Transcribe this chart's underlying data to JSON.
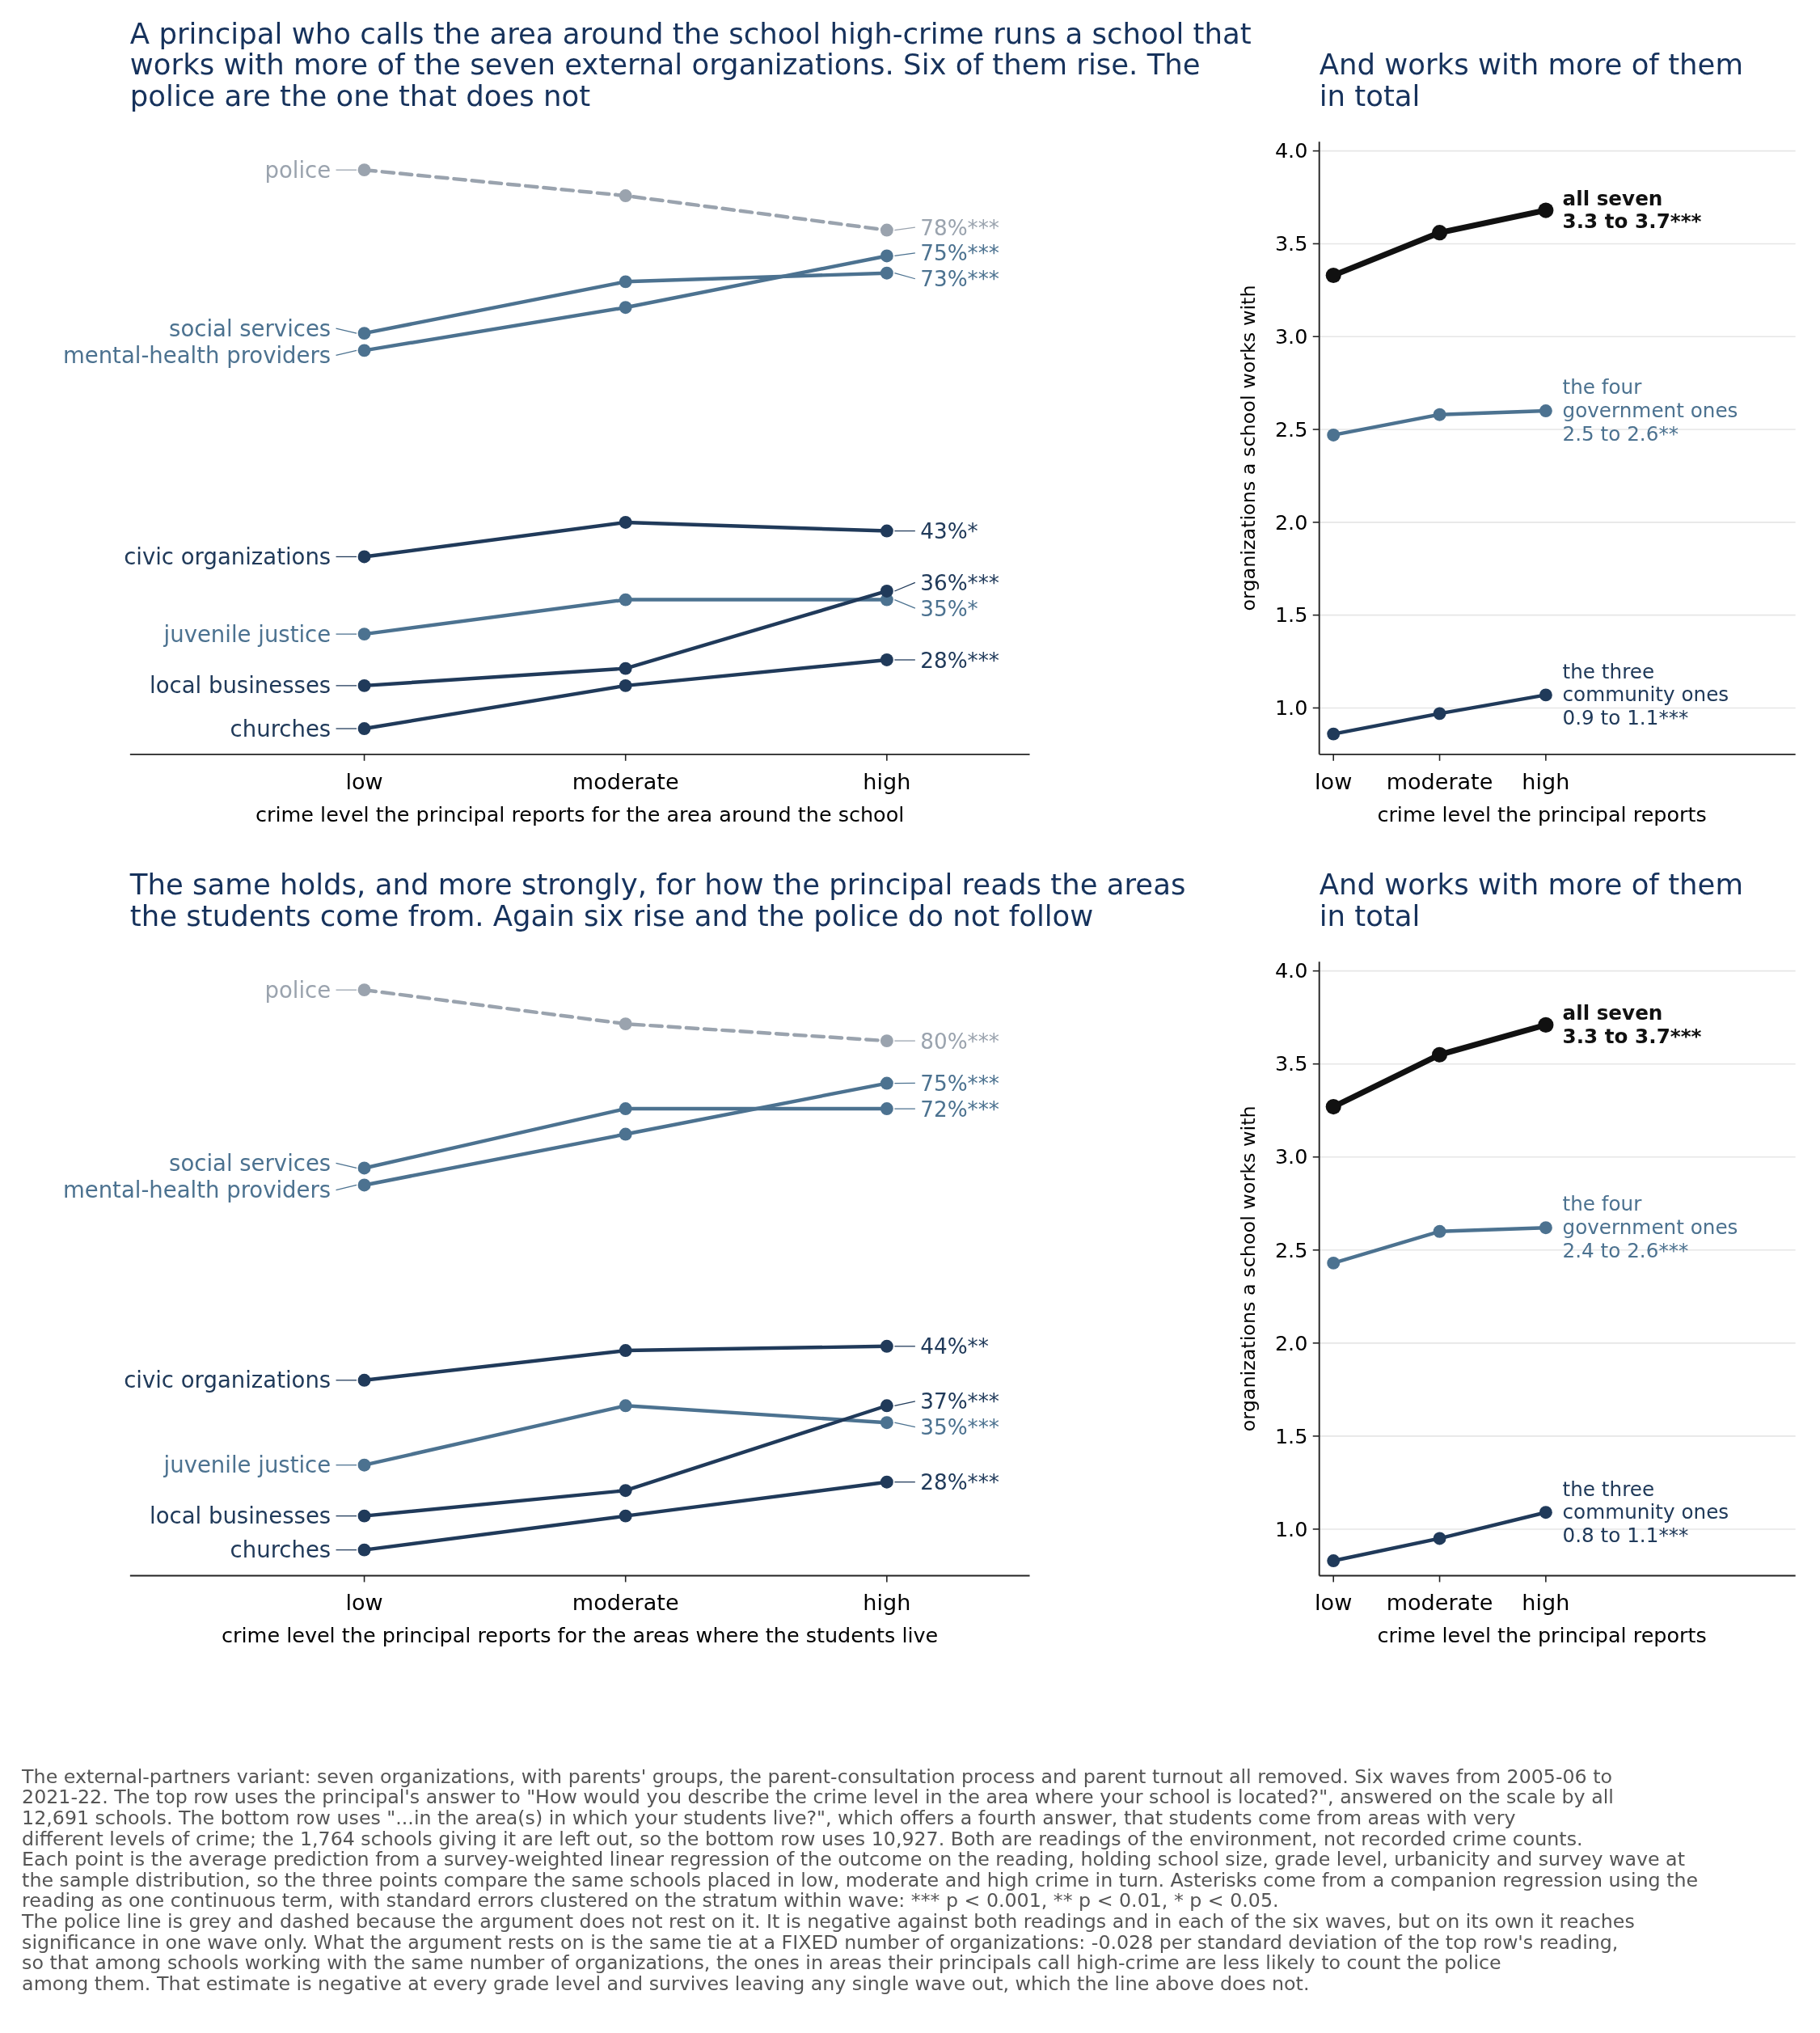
{
  "chart_data": [
    {
      "type": "line",
      "title": "A principal who calls the area around the school high-crime runs a school that\nworks with more of the seven external organizations. Six of them rise. The\npolice are the one that does not",
      "xlabel": "crime level the principal reports for the area around the school",
      "categories": [
        "low",
        "moderate",
        "high"
      ],
      "tick_labels": "x",
      "legend": "left",
      "marker": "circle",
      "series": [
        {
          "name": "police",
          "color": "#9aa3ae",
          "line_style": "dashed",
          "values": [
            85,
            82,
            78
          ],
          "value_labels": [
            null,
            null,
            "78%***"
          ]
        },
        {
          "name": "social services",
          "color": "#4c7290",
          "values": [
            66,
            72,
            73
          ],
          "value_labels": [
            null,
            null,
            "73%***"
          ]
        },
        {
          "name": "mental-health providers",
          "color": "#4c7290",
          "values": [
            64,
            69,
            75
          ],
          "value_labels": [
            null,
            null,
            "75%***"
          ]
        },
        {
          "name": "civic organizations",
          "color": "#203a5a",
          "values": [
            40,
            44,
            43
          ],
          "value_labels": [
            null,
            null,
            "43%*"
          ]
        },
        {
          "name": "juvenile justice",
          "color": "#4c7290",
          "values": [
            31,
            35,
            35
          ],
          "value_labels": [
            null,
            null,
            "35%*"
          ]
        },
        {
          "name": "local businesses",
          "color": "#203a5a",
          "values": [
            25,
            27,
            36
          ],
          "value_labels": [
            null,
            null,
            "36%***"
          ]
        },
        {
          "name": "churches",
          "color": "#203a5a",
          "values": [
            20,
            25,
            28
          ],
          "value_labels": [
            null,
            null,
            "28%***"
          ]
        }
      ]
    },
    {
      "type": "line",
      "title": "And works with more of them\nin total",
      "xlabel": "crime level the principal reports",
      "ylabel": "organizations a school works with",
      "categories": [
        "low",
        "moderate",
        "high"
      ],
      "ylim": [
        0.75,
        4.05
      ],
      "yticks": [
        {
          "value": 1,
          "label": "1.0"
        },
        {
          "value": 1.5,
          "label": "1.5"
        },
        {
          "value": 2,
          "label": "2.0"
        },
        {
          "value": 2.5,
          "label": "2.5"
        },
        {
          "value": 3,
          "label": "3.0"
        },
        {
          "value": 3.5,
          "label": "3.5"
        },
        {
          "value": 4,
          "label": "4.0"
        }
      ],
      "grid": "y",
      "marker": "circle",
      "series": [
        {
          "name": "all seven\n3.3 to 3.7***",
          "color": "#111111",
          "values": [
            3.33,
            3.56,
            3.68
          ]
        },
        {
          "name": "the four\ngovernment ones\n2.5 to 2.6**",
          "color": "#4c7290",
          "values": [
            2.47,
            2.58,
            2.6
          ]
        },
        {
          "name": "the three\ncommunity ones\n0.9 to 1.1***",
          "color": "#203a5a",
          "values": [
            0.86,
            0.97,
            1.07
          ]
        }
      ]
    },
    {
      "type": "line",
      "title": "The same holds, and more strongly, for how the principal reads the areas\nthe students come from. Again six rise and the police do not follow",
      "xlabel": "crime level the principal reports for the areas where the students live",
      "categories": [
        "low",
        "moderate",
        "high"
      ],
      "tick_labels": "x",
      "legend": "left",
      "marker": "circle",
      "series": [
        {
          "name": "police",
          "color": "#9aa3ae",
          "line_style": "dashed",
          "values": [
            86,
            82,
            80
          ],
          "value_labels": [
            null,
            null,
            "80%***"
          ]
        },
        {
          "name": "social services",
          "color": "#4c7290",
          "values": [
            65,
            72,
            72
          ],
          "value_labels": [
            null,
            null,
            "72%***"
          ]
        },
        {
          "name": "mental-health providers",
          "color": "#4c7290",
          "values": [
            63,
            69,
            75
          ],
          "value_labels": [
            null,
            null,
            "75%***"
          ]
        },
        {
          "name": "civic organizations",
          "color": "#203a5a",
          "values": [
            40,
            43.5,
            44
          ],
          "value_labels": [
            null,
            null,
            "44%**"
          ]
        },
        {
          "name": "juvenile justice",
          "color": "#4c7290",
          "values": [
            30,
            37,
            35
          ],
          "value_labels": [
            null,
            null,
            "35%***"
          ]
        },
        {
          "name": "local businesses",
          "color": "#203a5a",
          "values": [
            24,
            27,
            37
          ],
          "value_labels": [
            null,
            null,
            "37%***"
          ]
        },
        {
          "name": "churches",
          "color": "#203a5a",
          "values": [
            20,
            24,
            28
          ],
          "value_labels": [
            null,
            null,
            "28%***"
          ]
        }
      ]
    },
    {
      "type": "line",
      "title": "And works with more of them\nin total",
      "xlabel": "crime level the principal reports",
      "ylabel": "organizations a school works with",
      "categories": [
        "low",
        "moderate",
        "high"
      ],
      "ylim": [
        0.75,
        4.05
      ],
      "yticks": [
        {
          "value": 1,
          "label": "1.0"
        },
        {
          "value": 1.5,
          "label": "1.5"
        },
        {
          "value": 2,
          "label": "2.0"
        },
        {
          "value": 2.5,
          "label": "2.5"
        },
        {
          "value": 3,
          "label": "3.0"
        },
        {
          "value": 3.5,
          "label": "3.5"
        },
        {
          "value": 4,
          "label": "4.0"
        }
      ],
      "grid": "y",
      "marker": "circle",
      "series": [
        {
          "name": "all seven\n3.3 to 3.7***",
          "color": "#111111",
          "values": [
            3.27,
            3.55,
            3.71
          ]
        },
        {
          "name": "the four\ngovernment ones\n2.4 to 2.6***",
          "color": "#4c7290",
          "values": [
            2.43,
            2.6,
            2.62
          ]
        },
        {
          "name": "the three\ncommunity ones\n0.8 to 1.1***",
          "color": "#203a5a",
          "values": [
            0.83,
            0.95,
            1.09
          ]
        }
      ],
      "annotations": [
        "The external-partners variant: seven organizations, with parents' groups, the parent-consultation process and parent turnout all removed. Six waves from 2005-06 to",
        "2021-22. The top row uses the principal's answer to \"How would you describe the crime level in the area where your school is located?\", answered on the scale by all",
        "12,691 schools. The bottom row uses \"...in the area(s) in which your students live?\", which offers a fourth answer, that students come from areas with very",
        "different levels of crime; the 1,764 schools giving it are left out, so the bottom row uses 10,927. Both are readings of the environment, not recorded crime counts.",
        "Each point is the average prediction from a survey-weighted linear regression of the outcome on the reading, holding school size, grade level, urbanicity and survey wave at",
        "the sample distribution, so the three points compare the same schools placed in low, moderate and high crime in turn. Asterisks come from a companion regression using the",
        "reading as one continuous term, with standard errors clustered on the stratum within wave: *** p < 0.001, ** p < 0.01, * p < 0.05.",
        "The police line is grey and dashed because the argument does not rest on it. It is negative against both readings and in each of the six waves, but on its own it reaches",
        "significance in one wave only. What the argument rests on is the same tie at a FIXED number of organizations: -0.028 per standard deviation of the top row's reading,",
        "so that among schools working with the same number of organizations, the ones in areas their principals call high-crime are less likely to count the police",
        "among them. That estimate is negative at every grade level and survives leaving any single wave out, which the line above does not."
      ]
    }
  ]
}
